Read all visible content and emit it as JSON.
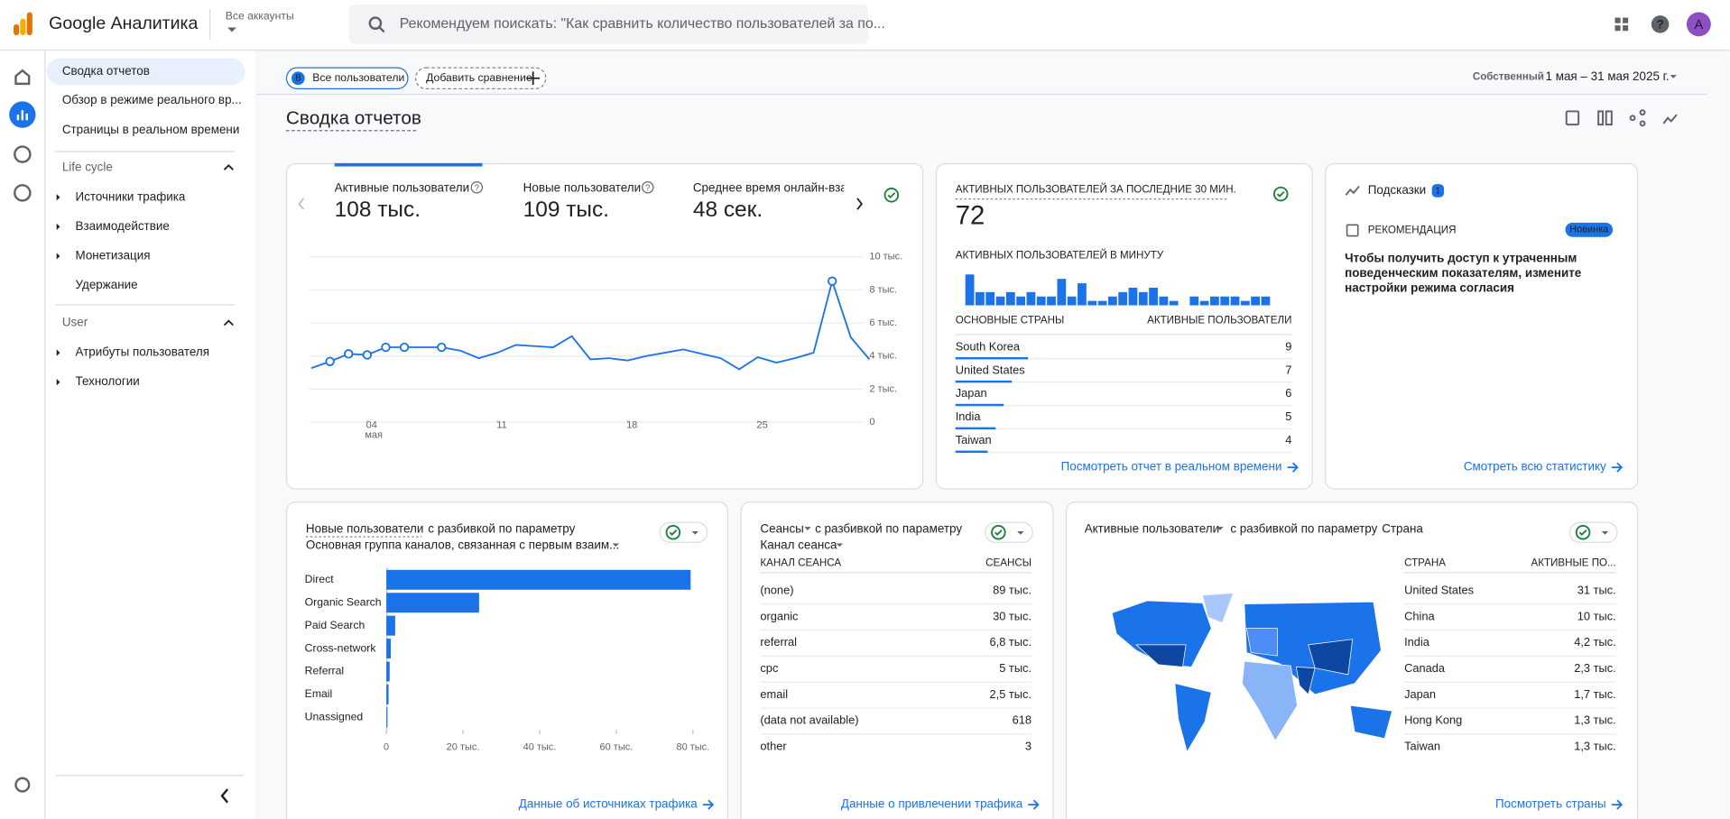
{
  "header": {
    "product": "Google Аналитика",
    "account": "Все аккаунты",
    "search": "Рекомендуем поискать: \"Как сравнить количество пользователей за по...",
    "avatar": "A"
  },
  "nav": {
    "items": [
      "Сводка отчетов",
      "Обзор в режиме реального вр...",
      "Страницы в реальном времени"
    ],
    "sections": [
      {
        "title": "Life cycle",
        "items": [
          "Источники трафика",
          "Взаимодействие",
          "Монетизация",
          "Удержание"
        ]
      },
      {
        "title": "User",
        "items": [
          "Атрибуты пользователя",
          "Технологии"
        ]
      }
    ]
  },
  "toolbar": {
    "segment_badge": "B",
    "segment": "Все пользователи",
    "compare": "Добавить сравнение",
    "date_label": "Собственный",
    "date_range": "1 мая – 31 мая 2025 г."
  },
  "page_title": "Сводка отчетов",
  "overview": {
    "metrics": [
      {
        "label": "Активные пользователи",
        "value": "108 тыс."
      },
      {
        "label": "Новые пользователи",
        "value": "109 тыс."
      },
      {
        "label": "Среднее время онлайн-взаимодействия",
        "value": "48 сек."
      }
    ],
    "chart": {
      "type": "line",
      "x": [
        1,
        2,
        3,
        4,
        5,
        6,
        7,
        8,
        9,
        10,
        11,
        12,
        13,
        14,
        15,
        16,
        17,
        18,
        19,
        20,
        21,
        22,
        23,
        24,
        25,
        26,
        27,
        28,
        29,
        30,
        31
      ],
      "values": [
        3270,
        3670,
        4130,
        4070,
        4530,
        4530,
        4530,
        4530,
        4330,
        3870,
        4200,
        4670,
        4600,
        4530,
        5200,
        3800,
        3870,
        3730,
        4000,
        4200,
        4400,
        4130,
        3870,
        3200,
        3930,
        3600,
        3870,
        4200,
        8530,
        5130,
        3800
      ],
      "marked_x": [
        2,
        3,
        4,
        5,
        6,
        8,
        29
      ],
      "xlim": [
        1,
        31
      ],
      "ylim": [
        0,
        10000
      ],
      "xticks": [
        {
          "value": 4,
          "label": "04"
        },
        11,
        18,
        25
      ],
      "x_month": "мая",
      "yticks": [
        0,
        {
          "value": 2000,
          "label": "2 тыс."
        },
        {
          "value": 4000,
          "label": "4 тыс."
        },
        {
          "value": 6000,
          "label": "6 тыс."
        },
        {
          "value": 8000,
          "label": "8 тыс."
        },
        {
          "value": 10000,
          "label": "10 тыс."
        }
      ]
    }
  },
  "realtime": {
    "title": "АКТИВНЫХ ПОЛЬЗОВАТЕЛЕЙ ЗА ПОСЛЕДНИЕ 30 МИН.",
    "value": "72",
    "per_minute": "АКТИВНЫХ ПОЛЬЗОВАТЕЛЕЙ В МИНУТУ",
    "minute_values": [
      7,
      3,
      3,
      2,
      3,
      2,
      3,
      2,
      2,
      6,
      2,
      5,
      1,
      1,
      2,
      3,
      4,
      3,
      4,
      2,
      1,
      0,
      2,
      1,
      2,
      2,
      2,
      1,
      2,
      2
    ],
    "columns": [
      "ОСНОВНЫЕ СТРАНЫ",
      "АКТИВНЫЕ ПОЛЬЗОВАТЕЛИ"
    ],
    "countries": [
      "South Korea",
      "United States",
      "Japan",
      "India",
      "Taiwan"
    ],
    "values": [
      9,
      7,
      6,
      5,
      4
    ],
    "link": "Посмотреть отчет в реальном времени"
  },
  "insights": {
    "title": "Подсказки",
    "count": "1",
    "kind": "РЕКОМЕНДАЦИЯ",
    "badge": "Новинка",
    "text": [
      "Чтобы получить доступ к утраченным",
      "поведенческим показателям, измените",
      "настройки режима согласия"
    ],
    "link": "Смотреть всю статистику"
  },
  "channels": {
    "type": "bar",
    "metric": "Новые пользователи",
    "rest": "с разбивкой по параметру",
    "dimension": "Основная группа каналов, связанная с первым взаим...",
    "categories": [
      "Direct",
      "Organic Search",
      "Paid Search",
      "Cross-network",
      "Referral",
      "Email",
      "Unassigned"
    ],
    "values": [
      79400,
      24200,
      2300,
      1150,
      860,
      580,
      290
    ],
    "xlim": [
      0,
      80000
    ],
    "xticks": [
      0,
      {
        "value": 20000,
        "label": "20 тыс."
      },
      {
        "value": 40000,
        "label": "40 тыс."
      },
      {
        "value": 60000,
        "label": "60 тыс."
      },
      {
        "value": 80000,
        "label": "80 тыс."
      }
    ],
    "link": "Данные об источниках трафика"
  },
  "sessions": {
    "metric": "Сеансы",
    "rest": "с разбивкой по параметру",
    "dimension": "Канал сеанса",
    "columns": [
      "КАНАЛ СЕАНСА",
      "СЕАНСЫ"
    ],
    "rows": [
      [
        "(none)",
        "89 тыс."
      ],
      [
        "organic",
        "30 тыс."
      ],
      [
        "referral",
        "6,8 тыс."
      ],
      [
        "cpc",
        "5 тыс."
      ],
      [
        "email",
        "2,5 тыс."
      ],
      [
        "(data not available)",
        "618"
      ],
      [
        "other",
        "3"
      ]
    ],
    "link": "Данные о привлечении трафика"
  },
  "geo": {
    "metric": "Активные пользователи",
    "rest": "с разбивкой по параметру",
    "dimension": "Страна",
    "columns": [
      "СТРАНА",
      "АКТИВНЫЕ ПО..."
    ],
    "rows": [
      [
        "United States",
        "31 тыс."
      ],
      [
        "China",
        "10 тыс."
      ],
      [
        "India",
        "4,2 тыс."
      ],
      [
        "Canada",
        "2,3 тыс."
      ],
      [
        "Japan",
        "1,7 тыс."
      ],
      [
        "Hong Kong",
        "1,3 тыс."
      ],
      [
        "Taiwan",
        "1,3 тыс."
      ]
    ],
    "link": "Посмотреть страны"
  }
}
